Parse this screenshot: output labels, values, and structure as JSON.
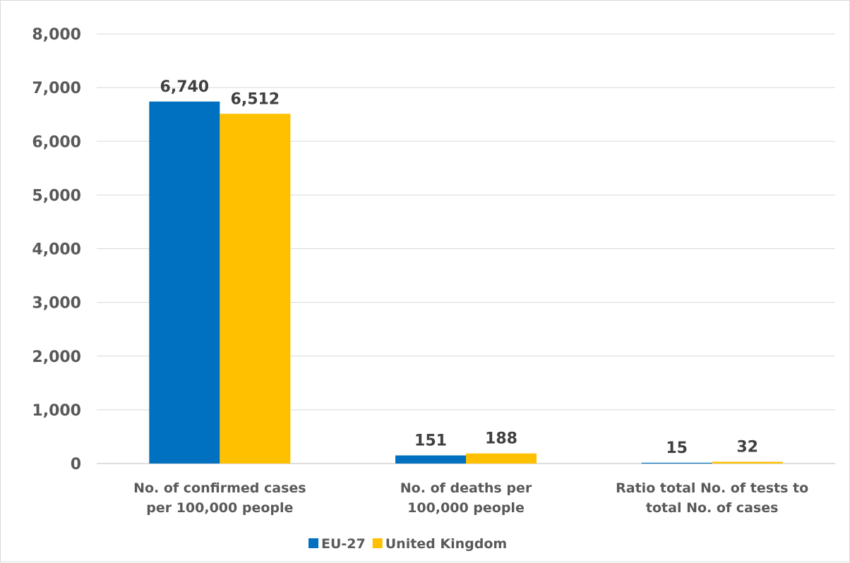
{
  "chart_data": {
    "type": "bar",
    "categories": [
      [
        "No. of confirmed cases",
        "per 100,000 people"
      ],
      [
        "No. of deaths per",
        "100,000 people"
      ],
      [
        "Ratio total No. of tests to",
        "total No. of cases"
      ]
    ],
    "series": [
      {
        "name": "EU-27",
        "color": "#0070C0",
        "values": [
          6740,
          151,
          15
        ],
        "labels": [
          "6,740",
          "151",
          "15"
        ]
      },
      {
        "name": "United Kingdom",
        "color": "#FFC000",
        "values": [
          6512,
          188,
          32
        ],
        "labels": [
          "6,512",
          "188",
          "32"
        ]
      }
    ],
    "ylim": [
      0,
      8000
    ],
    "yticks": [
      0,
      1000,
      2000,
      3000,
      4000,
      5000,
      6000,
      7000,
      8000
    ],
    "ytick_labels": [
      "0",
      "1,000",
      "2,000",
      "3,000",
      "4,000",
      "5,000",
      "6,000",
      "7,000",
      "8,000"
    ],
    "grid": true,
    "legend_position": "bottom"
  }
}
